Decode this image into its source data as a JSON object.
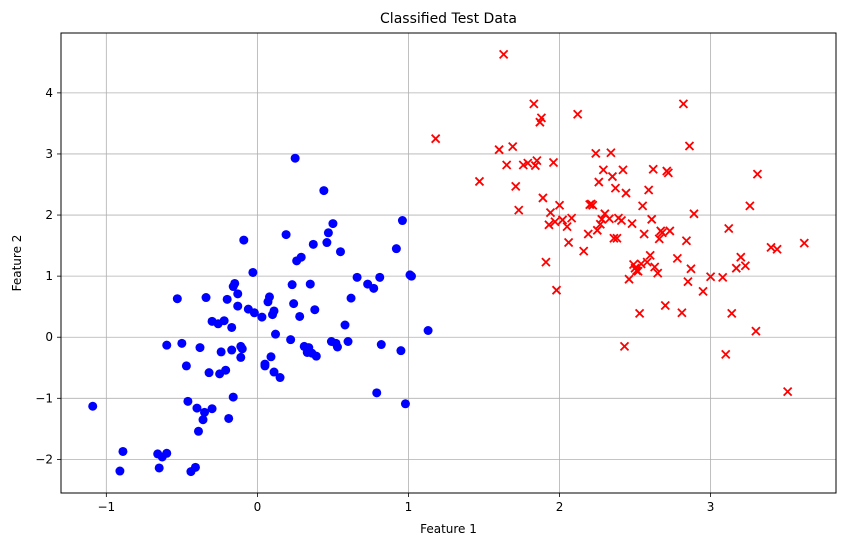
{
  "chart_data": {
    "type": "scatter",
    "title": "Classified Test Data",
    "xlabel": "Feature 1",
    "ylabel": "Feature 2",
    "xlim": [
      -1.3,
      3.83
    ],
    "ylim": [
      -2.55,
      4.98
    ],
    "xticks": [
      -1,
      0,
      1,
      2,
      3
    ],
    "yticks": [
      -2,
      -1,
      0,
      1,
      2,
      3,
      4
    ],
    "grid": true,
    "series": [
      {
        "marker": "circle",
        "color": "#0000ff",
        "x": [
          -1.09,
          -0.91,
          -0.89,
          -0.66,
          -0.65,
          -0.63,
          -0.6,
          -0.6,
          -0.53,
          -0.5,
          -0.47,
          -0.46,
          -0.44,
          -0.41,
          -0.4,
          -0.39,
          -0.38,
          -0.36,
          -0.35,
          -0.34,
          -0.32,
          -0.3,
          -0.3,
          -0.26,
          -0.25,
          -0.24,
          -0.22,
          -0.21,
          -0.2,
          -0.19,
          -0.17,
          -0.17,
          -0.16,
          -0.16,
          -0.15,
          -0.13,
          -0.13,
          -0.11,
          -0.11,
          -0.1,
          -0.09,
          -0.06,
          -0.03,
          -0.02,
          0.03,
          0.05,
          0.05,
          0.07,
          0.08,
          0.09,
          0.1,
          0.11,
          0.11,
          0.12,
          0.15,
          0.19,
          0.22,
          0.23,
          0.24,
          0.25,
          0.26,
          0.28,
          0.29,
          0.31,
          0.33,
          0.34,
          0.35,
          0.36,
          0.37,
          0.38,
          0.39,
          0.44,
          0.46,
          0.47,
          0.49,
          0.5,
          0.52,
          0.53,
          0.55,
          0.58,
          0.6,
          0.62,
          0.66,
          0.73,
          0.77,
          0.79,
          0.81,
          0.82,
          0.92,
          0.95,
          0.96,
          0.98,
          1.01,
          1.02,
          1.13
        ],
        "y": [
          -1.13,
          -2.19,
          -1.87,
          -1.91,
          -2.14,
          -1.96,
          -0.13,
          -1.9,
          0.63,
          -0.1,
          -0.47,
          -1.05,
          -2.2,
          -2.13,
          -1.16,
          -1.54,
          -0.17,
          -1.35,
          -1.23,
          0.65,
          -0.58,
          0.26,
          -1.17,
          0.22,
          -0.6,
          -0.24,
          0.27,
          -0.54,
          0.62,
          -1.33,
          0.16,
          -0.21,
          -0.98,
          0.83,
          0.88,
          0.51,
          0.71,
          -0.33,
          -0.15,
          -0.19,
          1.59,
          0.46,
          1.06,
          0.4,
          0.33,
          -0.44,
          -0.47,
          0.58,
          0.66,
          -0.32,
          0.37,
          0.43,
          -0.57,
          0.05,
          -0.66,
          1.68,
          -0.04,
          0.86,
          0.55,
          2.93,
          1.25,
          0.34,
          1.31,
          -0.15,
          -0.25,
          -0.17,
          0.87,
          -0.26,
          1.52,
          0.45,
          -0.31,
          2.4,
          1.55,
          1.71,
          -0.07,
          1.86,
          -0.1,
          -0.16,
          1.4,
          0.2,
          -0.07,
          0.64,
          0.98,
          0.87,
          0.8,
          -0.91,
          0.98,
          -0.12,
          1.45,
          -0.22,
          1.91,
          -1.09,
          1.02,
          1.0,
          0.11
        ]
      },
      {
        "marker": "x",
        "color": "#ff0000",
        "x": [
          1.18,
          1.47,
          1.6,
          1.63,
          1.65,
          1.69,
          1.71,
          1.73,
          1.76,
          1.79,
          1.83,
          1.84,
          1.85,
          1.87,
          1.88,
          1.89,
          1.91,
          1.93,
          1.94,
          1.96,
          1.97,
          1.98,
          2.0,
          2.02,
          2.05,
          2.06,
          2.08,
          2.12,
          2.16,
          2.19,
          2.2,
          2.21,
          2.22,
          2.24,
          2.25,
          2.26,
          2.27,
          2.28,
          2.29,
          2.3,
          2.33,
          2.34,
          2.35,
          2.36,
          2.37,
          2.38,
          2.39,
          2.41,
          2.42,
          2.43,
          2.44,
          2.46,
          2.48,
          2.49,
          2.5,
          2.51,
          2.52,
          2.53,
          2.54,
          2.55,
          2.56,
          2.58,
          2.59,
          2.6,
          2.61,
          2.62,
          2.63,
          2.65,
          2.66,
          2.67,
          2.68,
          2.7,
          2.71,
          2.72,
          2.73,
          2.78,
          2.81,
          2.82,
          2.84,
          2.85,
          2.86,
          2.87,
          2.89,
          2.95,
          3.0,
          3.08,
          3.1,
          3.12,
          3.14,
          3.17,
          3.2,
          3.23,
          3.26,
          3.3,
          3.31,
          3.4,
          3.44,
          3.51,
          3.62
        ],
        "y": [
          3.25,
          2.55,
          3.07,
          4.63,
          2.82,
          3.12,
          2.47,
          2.08,
          2.82,
          2.85,
          3.82,
          2.81,
          2.89,
          3.52,
          3.59,
          2.28,
          1.23,
          1.84,
          2.04,
          2.86,
          1.89,
          0.77,
          2.16,
          1.92,
          1.81,
          1.55,
          1.95,
          3.65,
          1.41,
          1.69,
          2.17,
          2.18,
          2.16,
          3.01,
          1.75,
          2.54,
          1.85,
          1.93,
          2.74,
          2.02,
          1.94,
          3.02,
          2.63,
          1.62,
          2.44,
          1.62,
          1.95,
          1.91,
          2.74,
          -0.15,
          2.36,
          0.95,
          1.86,
          1.19,
          1.13,
          1.09,
          1.08,
          0.39,
          1.2,
          2.15,
          1.69,
          1.23,
          2.41,
          1.34,
          1.93,
          2.75,
          1.15,
          1.05,
          1.61,
          1.74,
          1.71,
          0.52,
          2.72,
          2.69,
          1.74,
          1.29,
          0.4,
          3.82,
          1.58,
          0.91,
          3.13,
          1.12,
          2.02,
          0.75,
          0.99,
          0.98,
          -0.28,
          1.78,
          0.39,
          1.13,
          1.31,
          1.17,
          2.15,
          0.1,
          2.67,
          1.47,
          1.44,
          -0.89,
          1.54
        ]
      }
    ]
  }
}
